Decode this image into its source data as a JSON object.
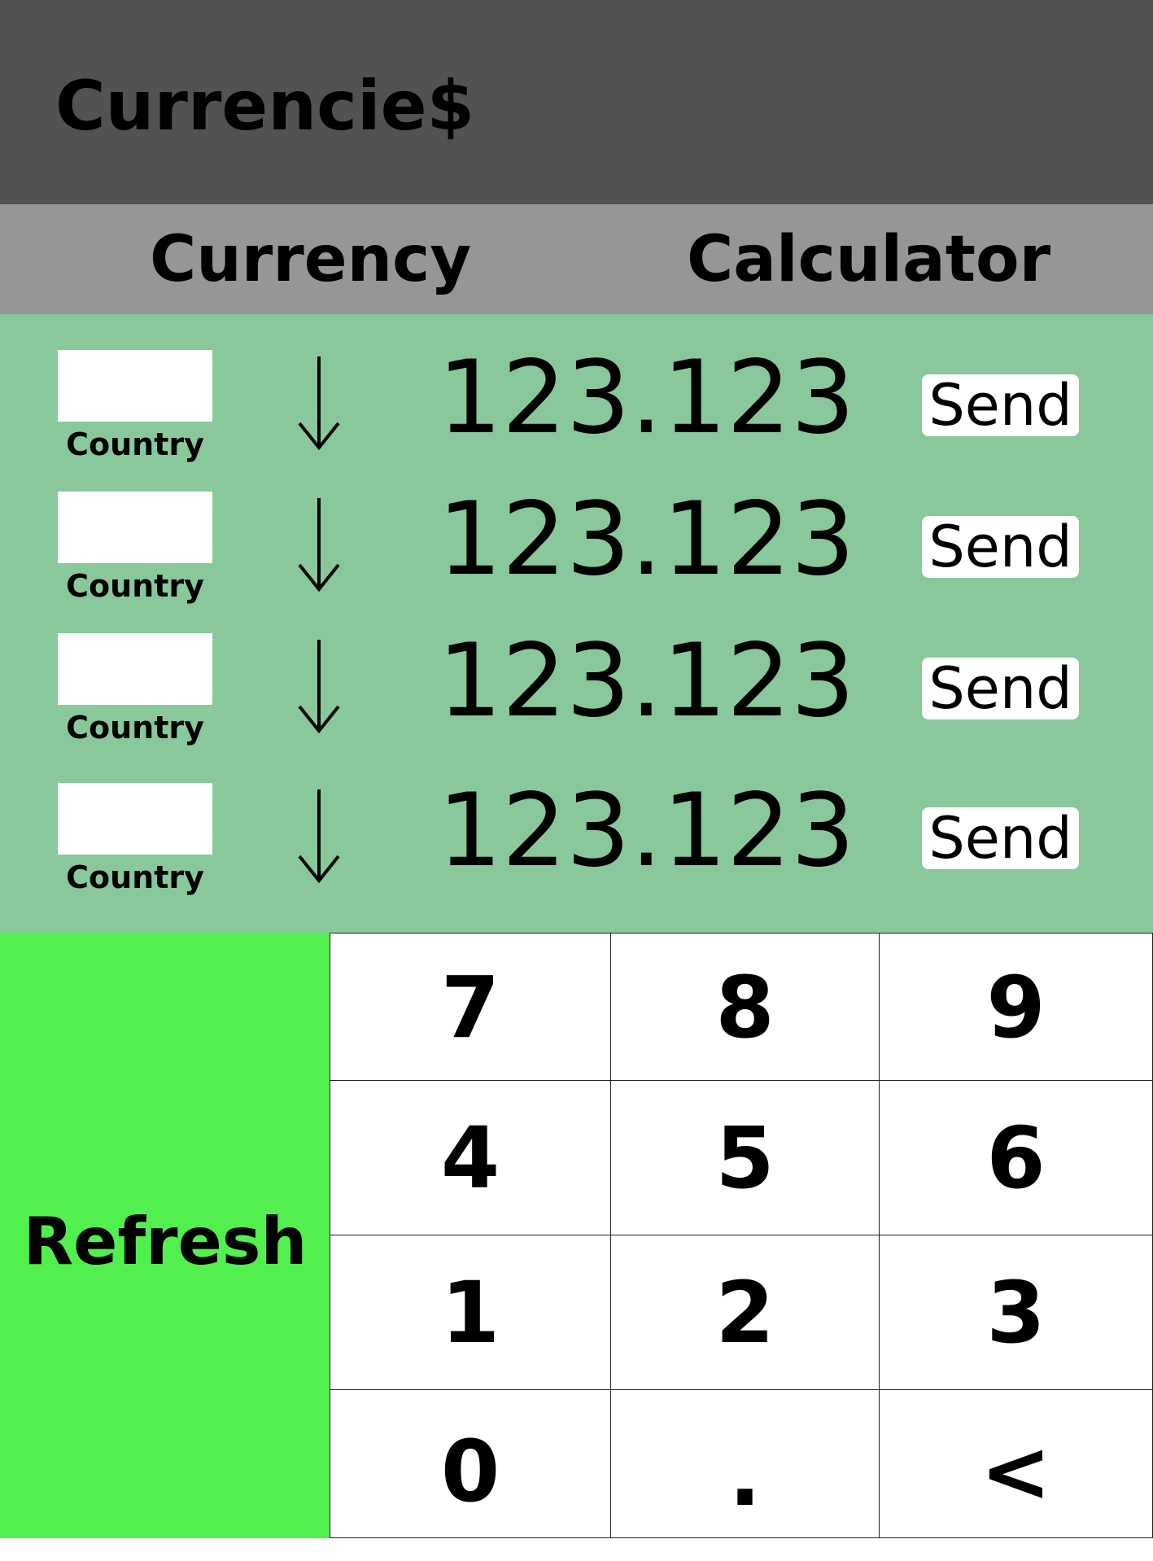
{
  "app": {
    "title": "Currencie$"
  },
  "tabs": [
    {
      "label": "Currency"
    },
    {
      "label": "Calculator"
    }
  ],
  "rates": [
    {
      "country": "Country",
      "amount": "123.123",
      "send_label": "Send"
    },
    {
      "country": "Country",
      "amount": "123.123",
      "send_label": "Send"
    },
    {
      "country": "Country",
      "amount": "123.123",
      "send_label": "Send"
    },
    {
      "country": "Country",
      "amount": "123.123",
      "send_label": "Send"
    }
  ],
  "refresh": {
    "label": "Refresh"
  },
  "keypad": {
    "keys": [
      "7",
      "8",
      "9",
      "4",
      "5",
      "6",
      "1",
      "2",
      "3",
      "0",
      ".",
      "<"
    ]
  },
  "colors": {
    "header": "#525252",
    "tabbar": "#969696",
    "rates_panel": "#89c89a",
    "refresh": "#52f04e"
  }
}
